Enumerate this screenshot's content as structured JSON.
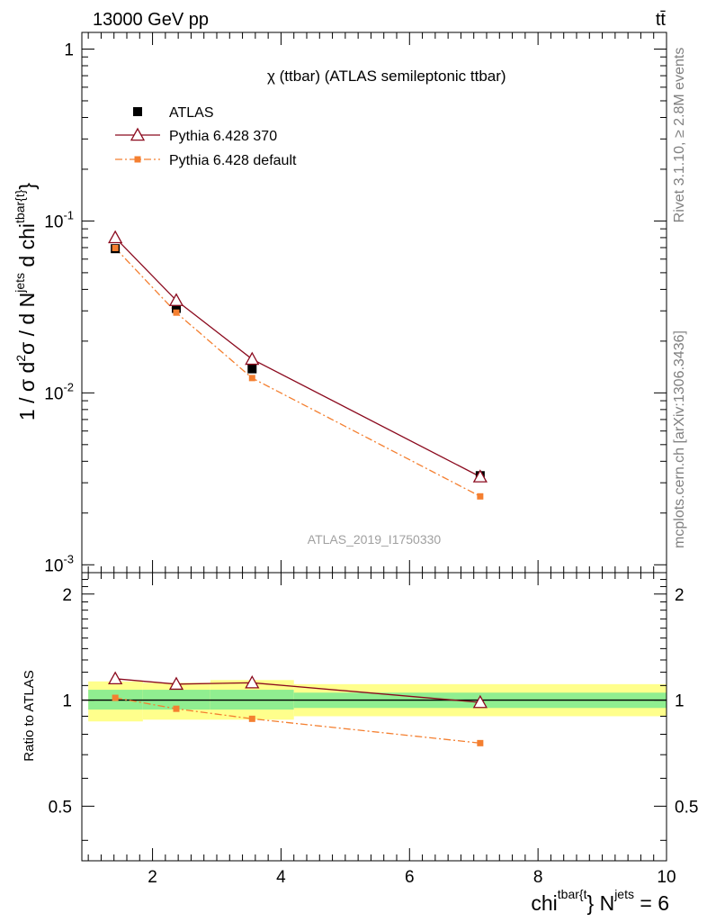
{
  "header": {
    "left": "13000 GeV pp",
    "right": "tt̄"
  },
  "side_text": {
    "rivet": "Rivet 3.1.10, ≥ 2.8M events",
    "mcplots": "mcplots.cern.ch [arXiv:1306.3436]"
  },
  "chart_data": {
    "type": "line",
    "title": "χ (ttbar) (ATLAS semileptonic ttbar)",
    "analysis_id": "ATLAS_2019_I1750330",
    "xlabel": "chi^{tbar{t}} N^{jets} = 6",
    "ylabel": "1 / σ d²σ / d N^{jets} d chi^{tbar{t}}",
    "ratio_ylabel": "Ratio to ATLAS",
    "xlim": [
      0.9,
      10.0
    ],
    "ylim": [
      0.0009,
      1.25
    ],
    "yscale": "log",
    "ratio_ylim": [
      0.35,
      2.3
    ],
    "x_ticks": [
      "2",
      "4",
      "6",
      "8",
      "10"
    ],
    "y_ticks": [
      "10^{-3}",
      "10^{-2}",
      "10^{-1}",
      "1"
    ],
    "ratio_ticks": [
      "0.5",
      "1",
      "2"
    ],
    "legend_position": "top-left",
    "bins": [
      {
        "low": 1.0,
        "high": 1.85,
        "center": 1.42
      },
      {
        "low": 1.85,
        "high": 2.9,
        "center": 2.37
      },
      {
        "low": 2.9,
        "high": 4.2,
        "center": 3.55
      },
      {
        "low": 4.2,
        "high": 10.0,
        "center": 7.1
      }
    ],
    "series": [
      {
        "name": "ATLAS",
        "marker": "square",
        "color": "#000000",
        "x": [
          1.42,
          2.37,
          3.55,
          7.1
        ],
        "values": [
          0.069,
          0.031,
          0.0138,
          0.0033
        ]
      },
      {
        "name": "Pythia 6.428 370",
        "marker": "triangle-open",
        "color": "#8b0a1e",
        "linestyle": "solid",
        "x": [
          1.42,
          2.37,
          3.55,
          7.1
        ],
        "values": [
          0.08,
          0.0345,
          0.0157,
          0.00325
        ]
      },
      {
        "name": "Pythia 6.428 default",
        "marker": "square-small",
        "color": "#f47f30",
        "linestyle": "dashdot",
        "x": [
          1.42,
          2.37,
          3.55,
          7.1
        ],
        "values": [
          0.0696,
          0.0293,
          0.0122,
          0.0025
        ]
      }
    ],
    "ratio": {
      "band_inner": [
        [
          0.94,
          1.07
        ],
        [
          0.94,
          1.07
        ],
        [
          0.94,
          1.07
        ],
        [
          0.95,
          1.05
        ]
      ],
      "band_outer": [
        [
          0.87,
          1.13
        ],
        [
          0.88,
          1.12
        ],
        [
          0.88,
          1.14
        ],
        [
          0.9,
          1.11
        ]
      ],
      "series": [
        {
          "name": "Pythia 6.428 370",
          "values": [
            1.15,
            1.11,
            1.12,
            0.985
          ]
        },
        {
          "name": "Pythia 6.428 default",
          "values": [
            1.015,
            0.945,
            0.885,
            0.755
          ]
        }
      ]
    },
    "colors": {
      "band_inner": "#90ee90",
      "band_outer": "#ffff8c",
      "rivet_text": "#808080",
      "analysis_text": "#a0a0a0"
    }
  }
}
